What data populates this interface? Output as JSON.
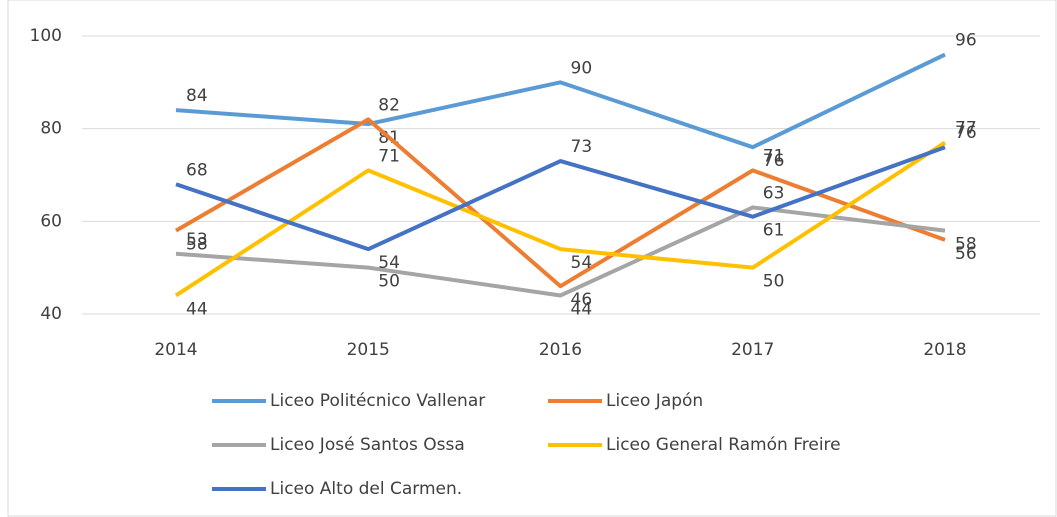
{
  "chart_data": {
    "type": "line",
    "categories": [
      "2014",
      "2015",
      "2016",
      "2017",
      "2018"
    ],
    "series": [
      {
        "name": "Liceo Politécnico Vallenar",
        "color": "#5b9bd5",
        "values": [
          84,
          81,
          90,
          76,
          96
        ]
      },
      {
        "name": "Liceo Japón",
        "color": "#ed7d31",
        "values": [
          58,
          82,
          46,
          71,
          56
        ]
      },
      {
        "name": "Liceo José Santos Ossa",
        "color": "#a5a5a5",
        "values": [
          53,
          50,
          44,
          63,
          58
        ]
      },
      {
        "name": "Liceo General Ramón Freire",
        "color": "#ffc000",
        "values": [
          44,
          71,
          54,
          50,
          77
        ]
      },
      {
        "name": "Liceo Alto del Carmen.",
        "color": "#4472c4",
        "values": [
          68,
          54,
          73,
          61,
          76
        ]
      }
    ],
    "ylim": [
      40,
      100
    ],
    "yticks": [
      40,
      60,
      80,
      100
    ],
    "grid": true,
    "legend": "bottom"
  }
}
